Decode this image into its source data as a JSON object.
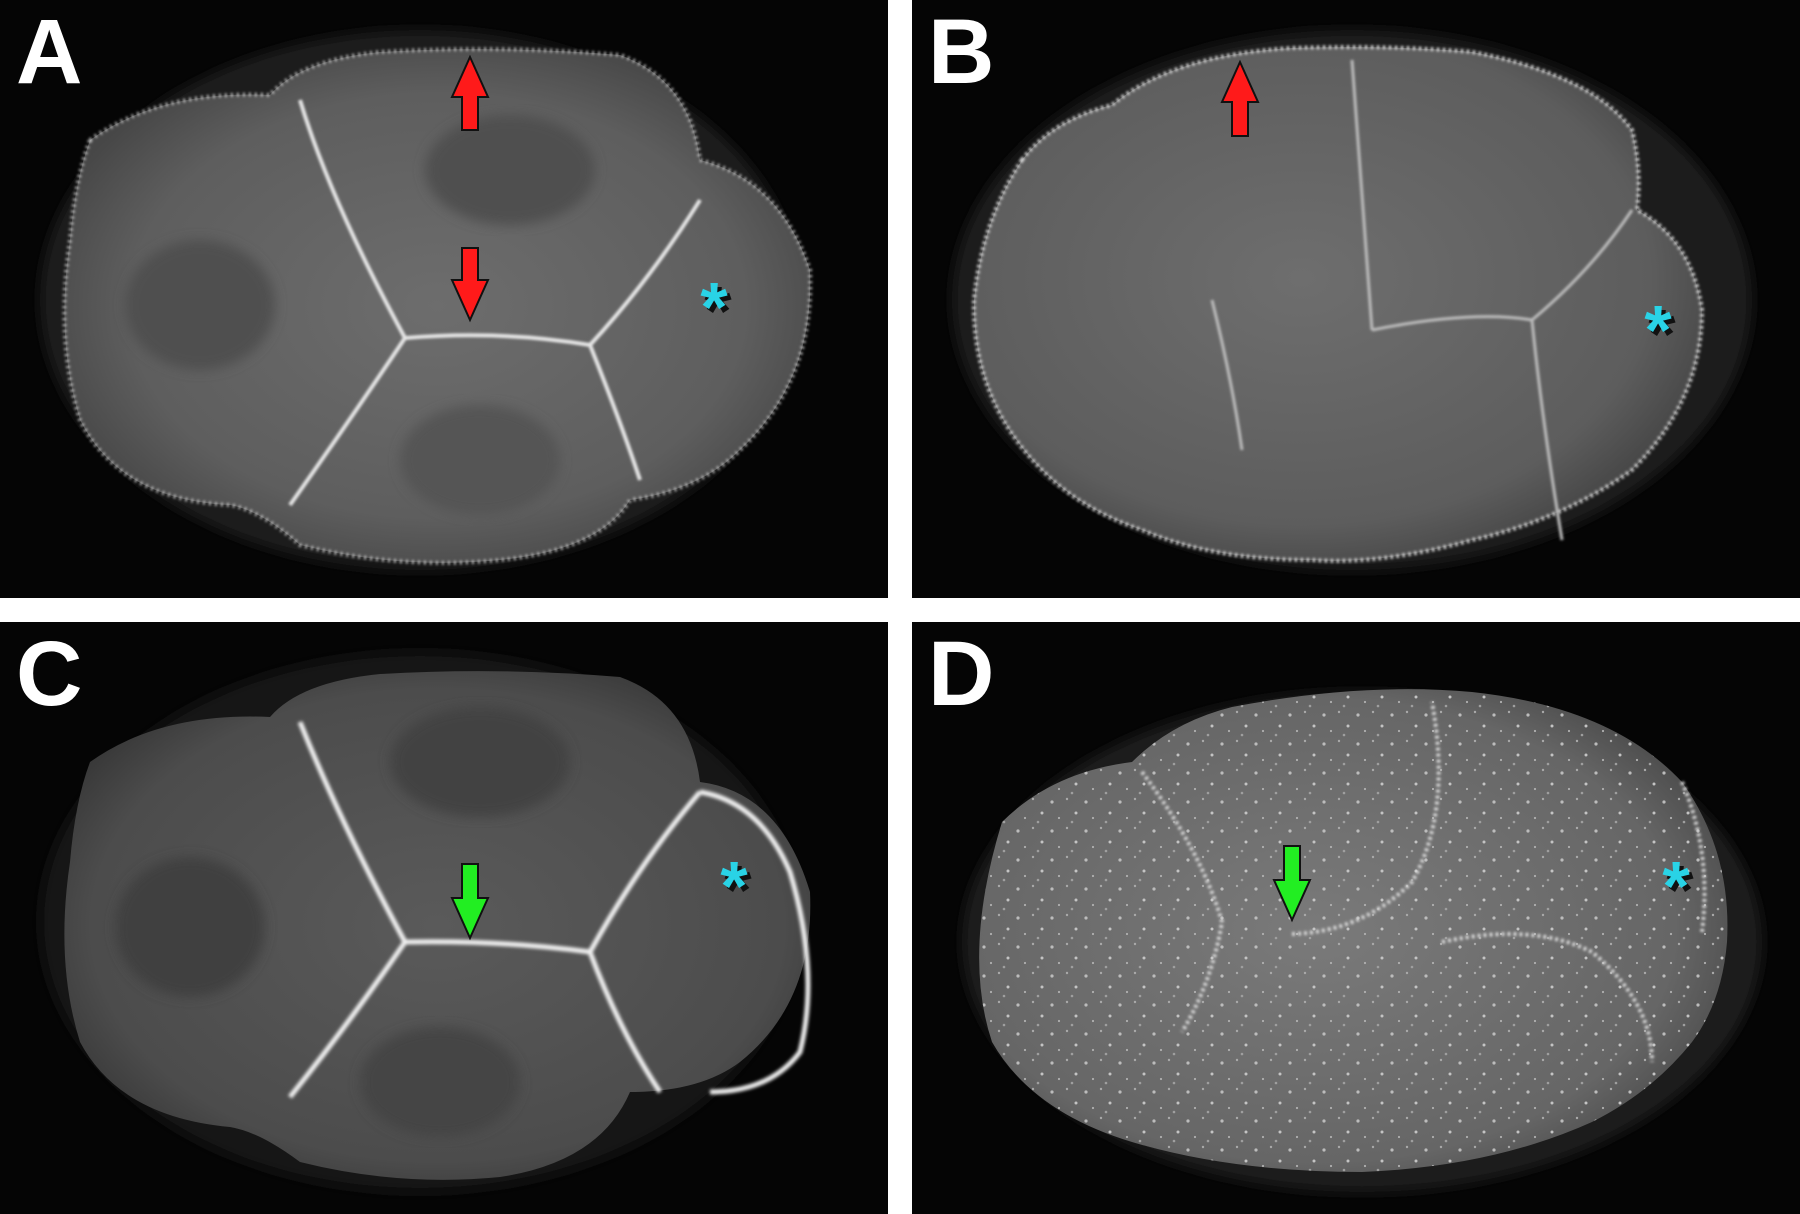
{
  "panels": [
    {
      "id": "A",
      "label": "A",
      "arrow_colors": [
        "#ff1a1a",
        "#ff1a1a"
      ],
      "asterisk_color": "#29d3e6"
    },
    {
      "id": "B",
      "label": "B",
      "arrow_colors": [
        "#ff1a1a"
      ],
      "asterisk_color": "#29d3e6"
    },
    {
      "id": "C",
      "label": "C",
      "arrow_colors": [
        "#22ee22"
      ],
      "asterisk_color": "#29d3e6"
    },
    {
      "id": "D",
      "label": "D",
      "arrow_colors": [
        "#22ee22"
      ],
      "asterisk_color": "#29d3e6"
    }
  ],
  "marker_symbol": "*",
  "scene": "four fluorescence micrographs of early embryos with cell membranes"
}
